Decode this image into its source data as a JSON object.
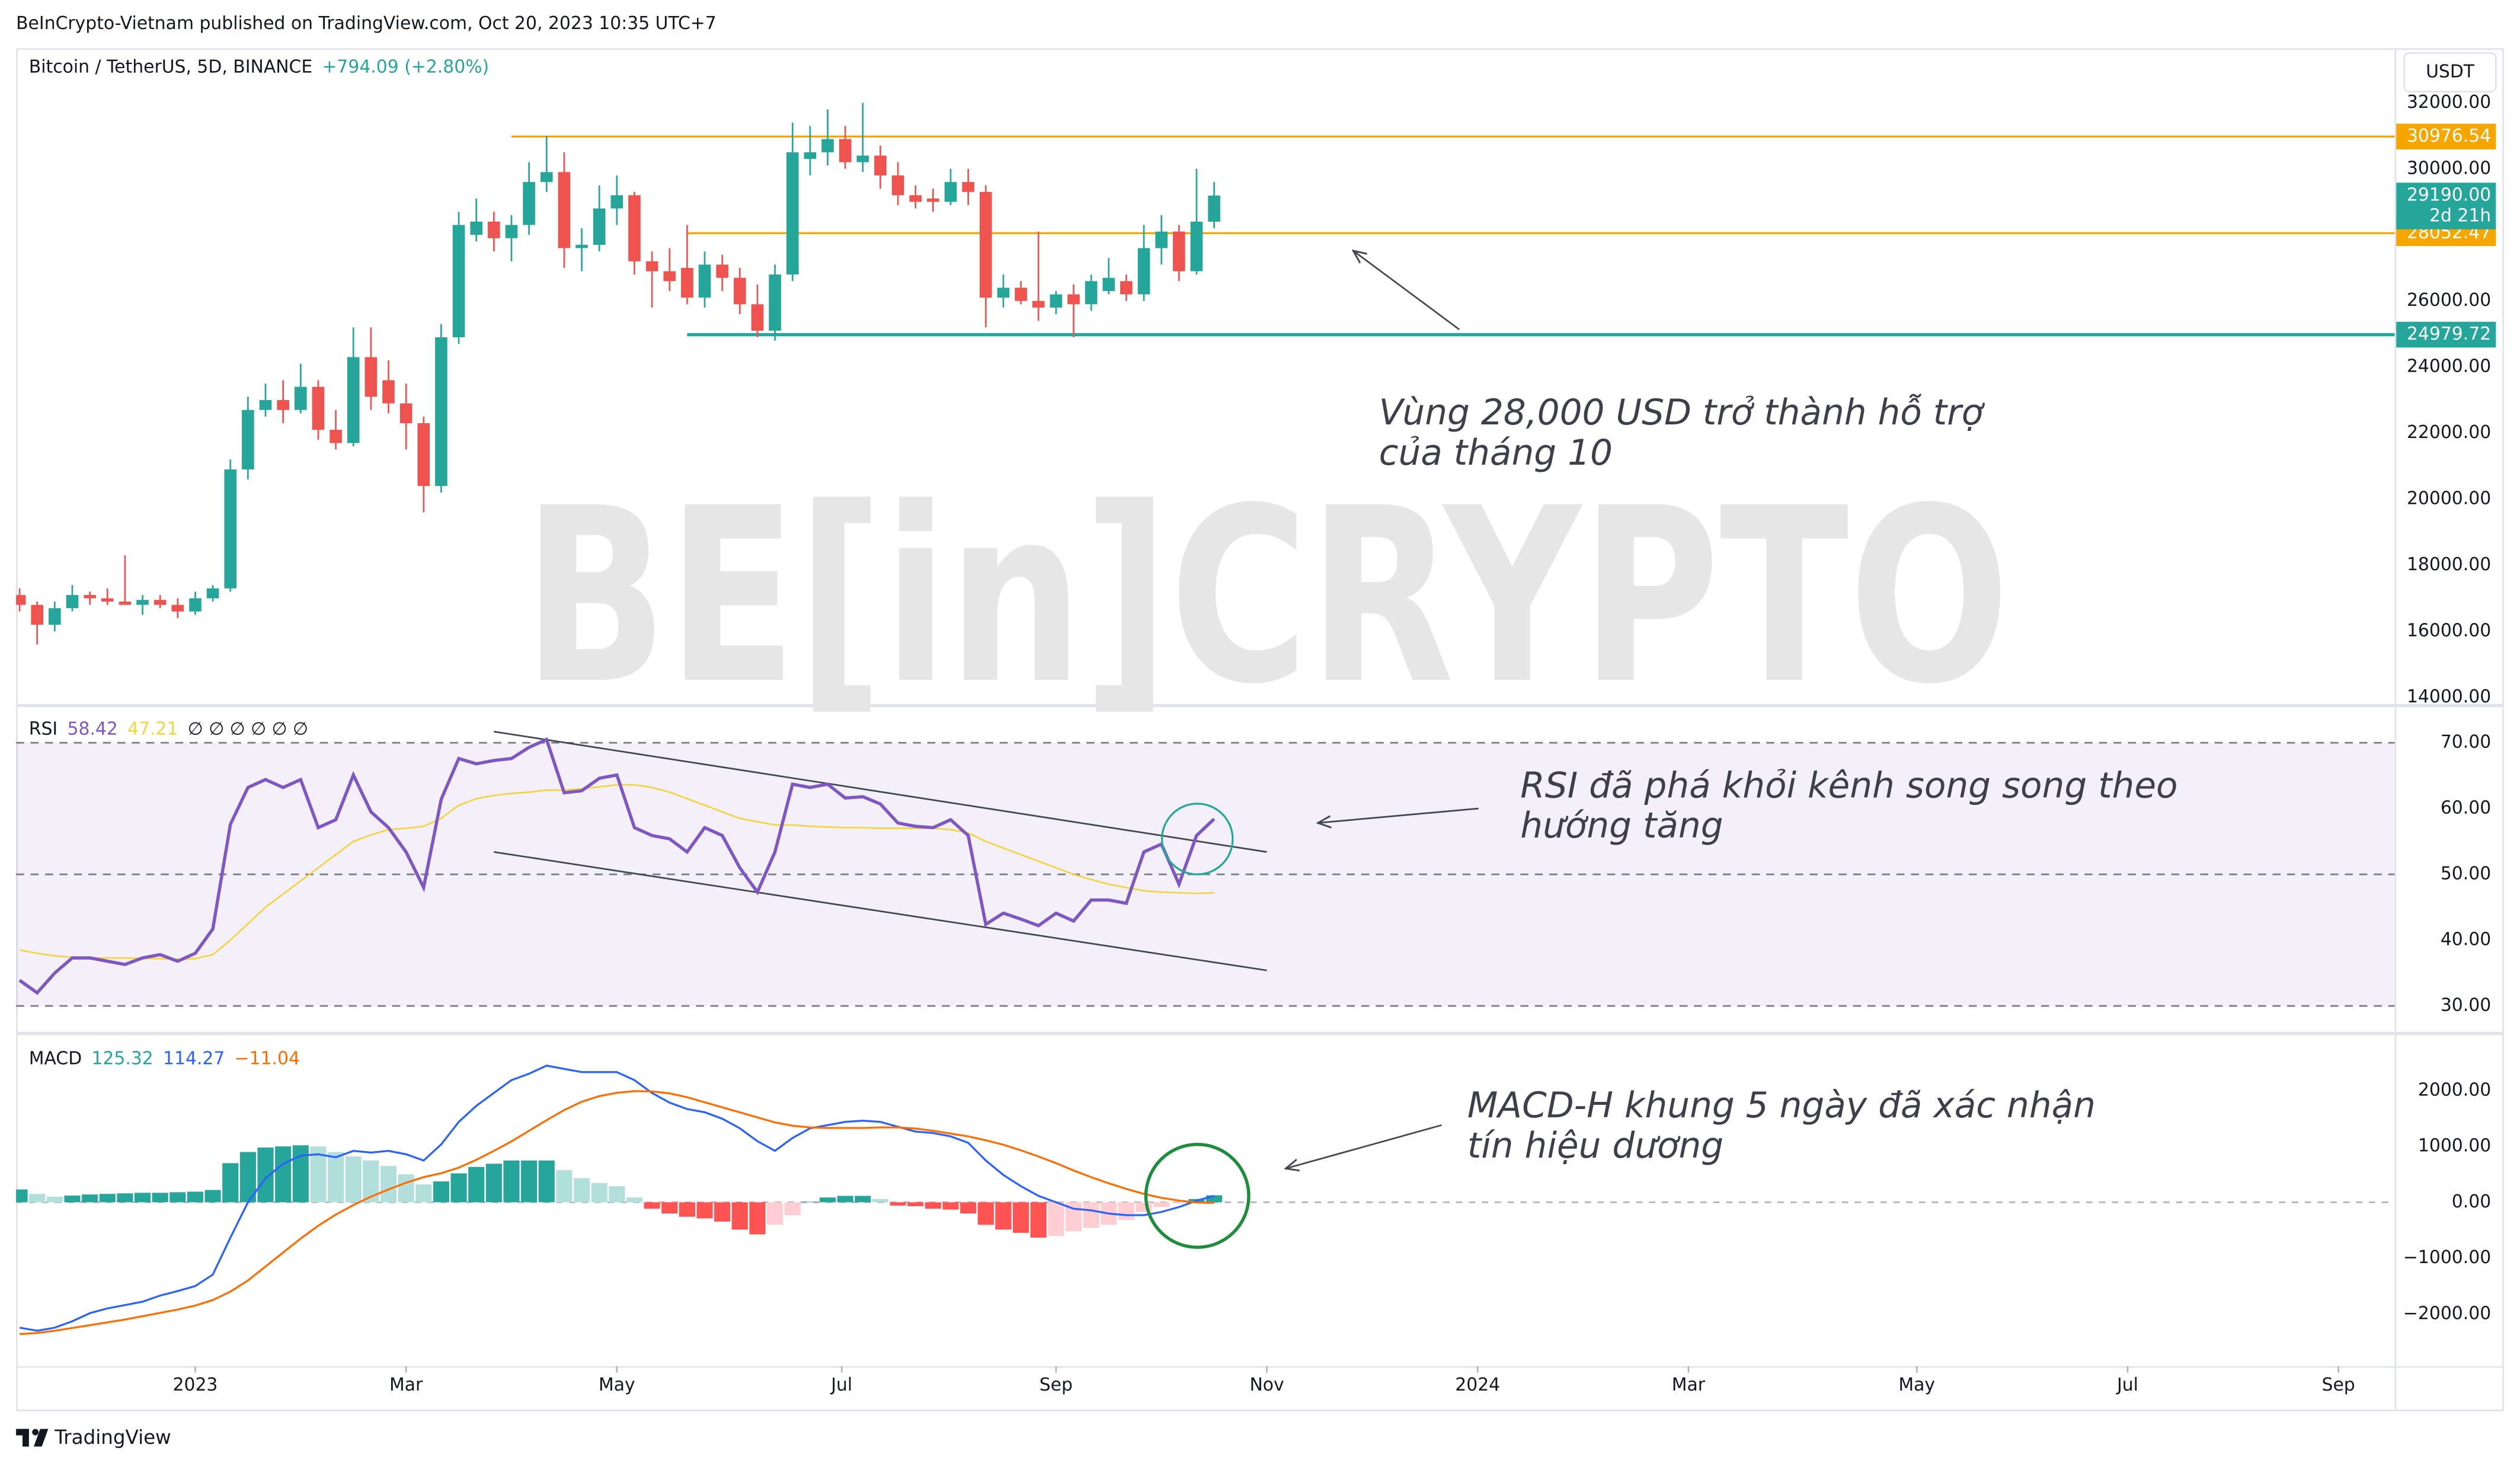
{
  "header": "BeInCrypto-Vietnam published on TradingView.com, Oct 20, 2023 10:35 UTC+7",
  "footer": "TradingView",
  "chart_data": [
    {
      "type": "candlestick",
      "symbol": "Bitcoin / TetherUS, 5D, BINANCE",
      "change": "+794.09 (+2.80%)",
      "currency": "USDT",
      "watermark": "BE[in]CRYPTO",
      "up_color": "#26a69a",
      "down_color": "#ef5350",
      "open": [
        17100,
        16800,
        16200,
        16700,
        17100,
        17000,
        16900,
        16800,
        16950,
        16800,
        16600,
        17000,
        17300,
        20900,
        22700,
        23000,
        22700,
        23400,
        22100,
        21700,
        24300,
        23600,
        22900,
        22300,
        20400,
        24900,
        28000,
        28400,
        27900,
        28300,
        29600,
        29900,
        27600,
        27700,
        28800,
        29200,
        27200,
        26900,
        27000,
        26100,
        27100,
        26700,
        25900,
        25100,
        26800,
        30300,
        30500,
        30900,
        30200,
        30400,
        29800,
        29200,
        29100,
        29000,
        29600,
        29300,
        26100,
        26400,
        26000,
        25800,
        26200,
        25900,
        26300,
        26600,
        26200,
        27600,
        28100,
        26900,
        28400
      ],
      "high": [
        17300,
        16900,
        16900,
        17400,
        17200,
        17300,
        18300,
        17100,
        17100,
        17000,
        17200,
        17400,
        21200,
        23100,
        23500,
        23600,
        24100,
        23600,
        22700,
        25200,
        25200,
        24200,
        23500,
        22500,
        25300,
        28700,
        29100,
        28700,
        28600,
        30200,
        31000,
        30500,
        28200,
        29500,
        29800,
        29300,
        27500,
        27600,
        28300,
        27500,
        27400,
        27000,
        26500,
        27100,
        31400,
        31300,
        31800,
        31300,
        32000,
        30700,
        30200,
        29500,
        29400,
        30000,
        30000,
        29500,
        26800,
        26600,
        28100,
        26300,
        26500,
        26800,
        27300,
        26800,
        28300,
        28600,
        28300,
        30000,
        29600
      ],
      "low": [
        16600,
        15600,
        16000,
        16600,
        16800,
        16800,
        16800,
        16500,
        16700,
        16400,
        16500,
        16900,
        17200,
        20600,
        22500,
        22300,
        22600,
        21800,
        21500,
        21600,
        22700,
        22600,
        21500,
        19600,
        20200,
        24700,
        27800,
        27500,
        27200,
        28000,
        29300,
        27000,
        26900,
        27500,
        28300,
        26800,
        25800,
        26300,
        25900,
        25800,
        26300,
        25600,
        24900,
        24800,
        26600,
        29800,
        30100,
        30000,
        29900,
        29400,
        28900,
        28800,
        28700,
        28900,
        28900,
        25200,
        25800,
        25900,
        25400,
        25600,
        24900,
        25700,
        26200,
        26000,
        26000,
        27100,
        26600,
        26800,
        28200
      ],
      "close": [
        16800,
        16200,
        16700,
        17100,
        17000,
        16900,
        16800,
        16950,
        16800,
        16600,
        17000,
        17300,
        20900,
        22700,
        23000,
        22700,
        23400,
        22100,
        21700,
        24300,
        23100,
        22900,
        22300,
        20400,
        24900,
        28300,
        28400,
        27900,
        28300,
        29600,
        29900,
        27600,
        27700,
        28800,
        29200,
        27200,
        26900,
        26600,
        26100,
        27100,
        26700,
        25900,
        25100,
        26800,
        30500,
        30500,
        30900,
        30200,
        30400,
        29800,
        29200,
        29000,
        29000,
        29600,
        29300,
        26100,
        26400,
        26000,
        25800,
        26200,
        25900,
        26600,
        26700,
        26200,
        27600,
        28100,
        26900,
        28400,
        29190
      ],
      "xlim": [
        -0.2,
        135.2
      ],
      "xticks": [
        {
          "value": 10,
          "label": "2023"
        },
        {
          "value": 22,
          "label": "Mar"
        },
        {
          "value": 34,
          "label": "May"
        },
        {
          "value": 46.8,
          "label": "Jul"
        },
        {
          "value": 59,
          "label": "Sep"
        },
        {
          "value": 71,
          "label": "Nov"
        },
        {
          "value": 83,
          "label": "2024"
        },
        {
          "value": 95,
          "label": "Mar"
        },
        {
          "value": 108,
          "label": "May"
        },
        {
          "value": 120,
          "label": "Jul"
        },
        {
          "value": 132,
          "label": "Sep"
        }
      ],
      "ylim": [
        13800,
        33650
      ],
      "yticks": [
        {
          "value": 14000,
          "label": "14000.00"
        },
        {
          "value": 16000,
          "label": "16000.00"
        },
        {
          "value": 18000,
          "label": "18000.00"
        },
        {
          "value": 20000,
          "label": "20000.00"
        },
        {
          "value": 22000,
          "label": "22000.00"
        },
        {
          "value": 24000,
          "label": "24000.00"
        },
        {
          "value": 26000,
          "label": "26000.00"
        },
        {
          "value": 30000,
          "label": "30000.00"
        },
        {
          "value": 32000,
          "label": "32000.00"
        }
      ],
      "levels": [
        {
          "value": 30976.54,
          "color": "#f7a600",
          "from": 28
        },
        {
          "value": 28052.47,
          "color": "#f7a600",
          "from": 38
        },
        {
          "value": 24979.72,
          "color": "#26a69a",
          "from": 38
        }
      ],
      "last_price": {
        "value": 29190,
        "label": "29190.00",
        "color": "#26a69a"
      },
      "countdown": "2d 21h",
      "annotation": [
        "Vùng 28,000 USD trở thành hỗ trợ",
        "của tháng 10"
      ]
    },
    {
      "type": "line",
      "title": "RSI",
      "readouts": [
        {
          "text": "58.42",
          "color": "#7e57c2"
        },
        {
          "text": "47.21",
          "color": "#f5d442"
        },
        {
          "text": "∅ ∅ ∅ ∅ ∅ ∅",
          "color": "#131722"
        }
      ],
      "series": [
        {
          "color": "#7e57c2",
          "values": [
            33.9,
            32,
            35,
            37.3,
            37.3,
            36.8,
            36.3,
            37.3,
            37.8,
            36.8,
            38,
            41.7,
            57.6,
            63.2,
            64.4,
            63.2,
            64.4,
            57.1,
            58.3,
            65.1,
            59.5,
            57.1,
            53.4,
            48,
            61.4,
            67.6,
            66.8,
            67.3,
            67.6,
            69.3,
            70.5,
            62.4,
            62.7,
            64.6,
            65.1,
            57.1,
            55.9,
            55.4,
            53.4,
            57.1,
            55.9,
            51,
            47.3,
            53.4,
            63.7,
            63.2,
            63.7,
            61.6,
            61.8,
            60.7,
            57.8,
            57.3,
            57.1,
            58.3,
            55.9,
            42.4,
            44.1,
            43.2,
            42.2,
            44.1,
            42.9,
            46.1,
            46.1,
            45.6,
            53.4,
            54.6,
            48.5,
            55.9,
            58.42
          ]
        },
        {
          "color": "#f5d442",
          "values": [
            38.5,
            38,
            37.6,
            37.4,
            37.3,
            37.3,
            37.3,
            37.2,
            37.2,
            37.1,
            37.2,
            37.8,
            40,
            42.5,
            45,
            47,
            49,
            51,
            53,
            55,
            56,
            56.8,
            57,
            57.3,
            58.5,
            60.5,
            61.5,
            62,
            62.3,
            62.5,
            62.8,
            62.8,
            63,
            63.3,
            63.6,
            63.6,
            63.2,
            62.5,
            61.5,
            60.5,
            59.5,
            58.5,
            58,
            57.5,
            57.5,
            57.3,
            57.2,
            57.1,
            57.1,
            57,
            57,
            57,
            57,
            56.8,
            56.3,
            55,
            54,
            53,
            52,
            51,
            50,
            49.2,
            48.5,
            48,
            47.5,
            47.3,
            47.2,
            47.1,
            47.21
          ]
        }
      ],
      "ylim": [
        26.3,
        75.4
      ],
      "yticks": [
        {
          "value": 30,
          "label": "30.00"
        },
        {
          "value": 40,
          "label": "40.00"
        },
        {
          "value": 50,
          "label": "50.00"
        },
        {
          "value": 60,
          "label": "60.00"
        },
        {
          "value": 70,
          "label": "70.00"
        }
      ],
      "levels": [
        70,
        50,
        30
      ],
      "band_color": "#7e57c2",
      "trendlines": [
        {
          "points": [
            [
              27,
              71.7
            ],
            [
              71,
              53.4
            ]
          ]
        },
        {
          "points": [
            [
              27,
              53.4
            ],
            [
              71,
              35.4
            ]
          ]
        }
      ],
      "annotation": [
        "RSI đã phá khỏi kênh song song theo",
        "hướng tăng"
      ]
    },
    {
      "type": "macd",
      "title": "MACD",
      "readouts": [
        {
          "text": "125.32",
          "color": "#26a69a"
        },
        {
          "text": "114.27",
          "color": "#2962ff"
        },
        {
          "text": "−11.04",
          "color": "#ff6d00"
        }
      ],
      "histogram": {
        "values": [
          230,
          150,
          100,
          120,
          140,
          150,
          160,
          170,
          170,
          180,
          190,
          220,
          700,
          900,
          980,
          1000,
          1020,
          1000,
          900,
          820,
          750,
          650,
          500,
          320,
          374,
          518,
          633,
          690,
          748,
          748,
          748,
          576,
          432,
          345,
          288,
          86,
          -115,
          -201,
          -259,
          -288,
          -345,
          -489,
          -575,
          -403,
          -230,
          10,
          86,
          115,
          115,
          58,
          -58,
          -70,
          -115,
          -130,
          -201,
          -403,
          -489,
          -547,
          -633,
          -604,
          -518,
          -460,
          -403,
          -317,
          -173,
          -86,
          -10,
          58,
          125.32
        ],
        "colors": {
          "up_rising": "#26a69a",
          "up_falling": "#b2dfdb",
          "down_falling": "#ff5252",
          "down_rising": "#ffcdd2"
        }
      },
      "series": [
        {
          "color": "#2962ff",
          "values": [
            -2245,
            -2300,
            -2245,
            -2130,
            -1985,
            -1900,
            -1840,
            -1780,
            -1670,
            -1590,
            -1500,
            -1295,
            -633,
            0,
            430,
            690,
            835,
            860,
            806,
            920,
            890,
            920,
            860,
            748,
            1036,
            1439,
            1727,
            1957,
            2187,
            2302,
            2446,
            2388,
            2331,
            2331,
            2331,
            2187,
            1957,
            1784,
            1669,
            1612,
            1496,
            1324,
            1094,
            921,
            1151,
            1324,
            1381,
            1439,
            1460,
            1439,
            1352,
            1266,
            1240,
            1180,
            1065,
            748,
            489,
            288,
            115,
            0,
            -115,
            -144,
            -201,
            -230,
            -230,
            -173,
            -86,
            29,
            114.27
          ]
        },
        {
          "color": "#ff6d00",
          "values": [
            -2360,
            -2340,
            -2300,
            -2250,
            -2200,
            -2150,
            -2100,
            -2040,
            -1980,
            -1920,
            -1850,
            -1750,
            -1600,
            -1400,
            -1150,
            -900,
            -650,
            -420,
            -220,
            -50,
            100,
            230,
            350,
            450,
            520,
            620,
            760,
            920,
            1090,
            1280,
            1470,
            1650,
            1800,
            1900,
            1960,
            1990,
            1985,
            1950,
            1880,
            1790,
            1700,
            1610,
            1520,
            1430,
            1370,
            1340,
            1330,
            1330,
            1330,
            1340,
            1340,
            1320,
            1280,
            1230,
            1180,
            1110,
            1030,
            930,
            820,
            700,
            570,
            450,
            340,
            240,
            150,
            80,
            30,
            -5,
            -11.04
          ]
        }
      ],
      "ylim": [
        -2935,
        2964
      ],
      "yticks": [
        {
          "value": -2000,
          "label": "−2000.00"
        },
        {
          "value": -1000,
          "label": "−1000.00"
        },
        {
          "value": 0,
          "label": "0.00"
        },
        {
          "value": 1000,
          "label": "1000.00"
        },
        {
          "value": 2000,
          "label": "2000.00"
        }
      ],
      "levels": [
        0
      ],
      "annotation": [
        "MACD-H khung 5 ngày đã xác nhận",
        "tín hiệu dương"
      ]
    }
  ]
}
